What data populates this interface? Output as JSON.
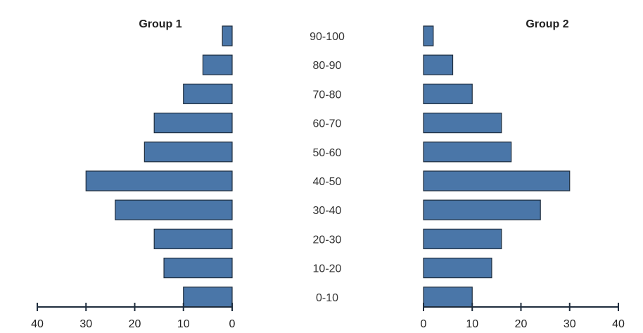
{
  "chart_data": {
    "type": "bar",
    "orientation": "horizontal-butterfly",
    "bar_color": "#4a76a8",
    "bar_edge_color": "#1f2d3d",
    "categories": [
      "90-100",
      "80-90",
      "70-80",
      "60-70",
      "50-60",
      "40-50",
      "30-40",
      "20-30",
      "10-20",
      "0-10"
    ],
    "series": [
      {
        "name": "Group 1",
        "values": [
          2,
          6,
          10,
          16,
          18,
          30,
          24,
          16,
          14,
          10
        ]
      },
      {
        "name": "Group 2",
        "values": [
          2,
          6,
          10,
          16,
          18,
          30,
          24,
          16,
          14,
          10
        ]
      }
    ],
    "left_axis": {
      "range": [
        40,
        0
      ],
      "ticks": [
        "40",
        "30",
        "20",
        "10",
        "0"
      ]
    },
    "right_axis": {
      "range": [
        0,
        40
      ],
      "ticks": [
        "0",
        "10",
        "20",
        "30",
        "40"
      ]
    },
    "grid": false,
    "legend": "none"
  }
}
